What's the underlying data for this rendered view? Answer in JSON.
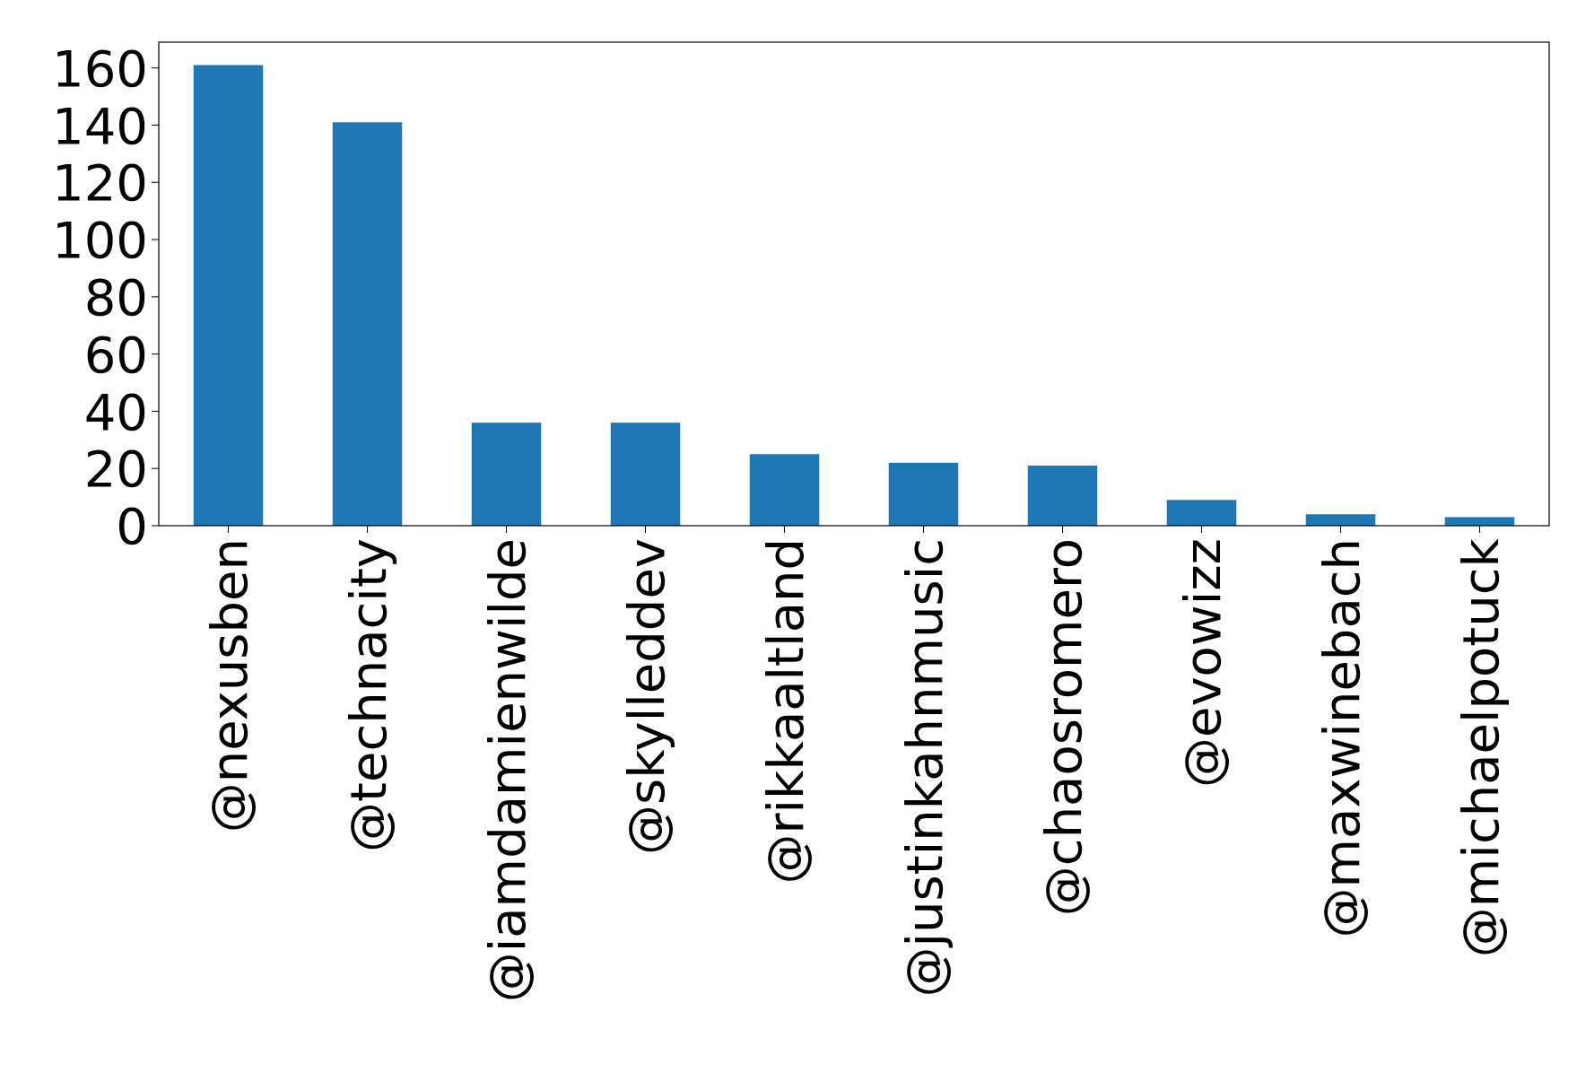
{
  "chart_data": {
    "type": "bar",
    "categories": [
      "@nexusben",
      "@technacity",
      "@iamdamienwilde",
      "@skylleddev",
      "@rikkaaltland",
      "@justinkahnmusic",
      "@chaosromero",
      "@evowizz",
      "@maxwinebach",
      "@michaelpotuck"
    ],
    "values": [
      161,
      141,
      36,
      36,
      25,
      22,
      21,
      9,
      4,
      3
    ],
    "color": "#1f77b4",
    "ylim": [
      0,
      169
    ],
    "yticks": [
      0,
      20,
      40,
      60,
      80,
      100,
      120,
      140,
      160
    ],
    "grid": false
  }
}
